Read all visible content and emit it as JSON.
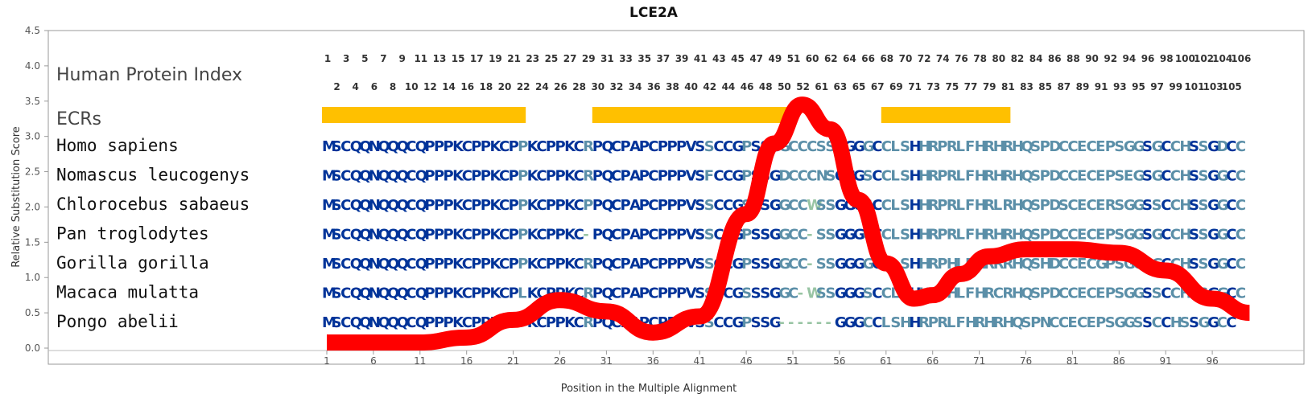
{
  "chart_data": {
    "type": "line",
    "title": "LCE2A",
    "xlabel": "Position in the Multiple Alignment",
    "ylabel": "Relative Substitution Score",
    "ylim": [
      0,
      4.5
    ],
    "y_ticks": [
      "0.0",
      "0.5",
      "1.0",
      "1.5",
      "2.0",
      "2.5",
      "3.0",
      "3.5",
      "4.0",
      "4.5"
    ],
    "x_ticks": [
      "1",
      "6",
      "11",
      "16",
      "21",
      "26",
      "31",
      "36",
      "41",
      "46",
      "51",
      "56",
      "61",
      "66",
      "71",
      "76",
      "81",
      "86",
      "91",
      "96"
    ],
    "series": [
      {
        "color": "#ff0000",
        "points": [
          [
            1,
            0.08
          ],
          [
            6,
            0.08
          ],
          [
            11,
            0.08
          ],
          [
            16,
            0.15
          ],
          [
            21,
            0.4
          ],
          [
            26,
            0.68
          ],
          [
            31,
            0.52
          ],
          [
            36,
            0.22
          ],
          [
            41,
            0.45
          ],
          [
            46,
            1.9
          ],
          [
            49,
            2.9
          ],
          [
            52,
            3.45
          ],
          [
            55,
            3.1
          ],
          [
            58,
            2.1
          ],
          [
            61,
            1.2
          ],
          [
            64,
            0.7
          ],
          [
            66,
            0.75
          ],
          [
            69,
            1.05
          ],
          [
            72,
            1.3
          ],
          [
            76,
            1.4
          ],
          [
            81,
            1.4
          ],
          [
            86,
            1.35
          ],
          [
            91,
            1.1
          ],
          [
            96,
            0.7
          ],
          [
            100,
            0.5
          ]
        ]
      }
    ]
  },
  "index_panel": {
    "label": "Human Protein Index",
    "row1": [
      "1",
      "3",
      "5",
      "7",
      "9",
      "11",
      "13",
      "15",
      "17",
      "19",
      "21",
      "23",
      "25",
      "27",
      "29",
      "31",
      "33",
      "35",
      "37",
      "39",
      "41",
      "43",
      "45",
      "47",
      "49",
      "51",
      "60",
      "62",
      "64",
      "66",
      "68",
      "70",
      "72",
      "74",
      "76",
      "78",
      "80",
      "82",
      "84",
      "86",
      "88",
      "90",
      "92",
      "94",
      "96",
      "98",
      "100",
      "102",
      "104",
      "106"
    ],
    "row2": [
      "2",
      "4",
      "6",
      "8",
      "10",
      "12",
      "14",
      "16",
      "18",
      "20",
      "22",
      "24",
      "26",
      "28",
      "30",
      "32",
      "34",
      "36",
      "38",
      "40",
      "42",
      "44",
      "46",
      "48",
      "50",
      "52",
      "61",
      "63",
      "65",
      "67",
      "69",
      "71",
      "73",
      "75",
      "77",
      "79",
      "81",
      "83",
      "85",
      "87",
      "89",
      "91",
      "93",
      "95",
      "97",
      "99",
      "101",
      "103",
      "105"
    ]
  },
  "ecr_panel": {
    "label": "ECRs",
    "color": "#ffc000",
    "ranges": [
      [
        1,
        22
      ],
      [
        30,
        50
      ],
      [
        61,
        74
      ]
    ]
  },
  "alignment": {
    "colors": {
      "conserved": "#003399",
      "variable": "#5b8fa8",
      "pale": "#98c4a3"
    },
    "species": [
      {
        "name": "Homo sapiens",
        "sequence": "MSCQQNQQQCQPPPKCPPKCPPKCPPKCRPQCPAPCPPPVSSCCGPSSGGCCCSSGGGGCCLSHHRPRLFHRHRHQSPDCCECEPSGGSGCCHSSGDCC"
      },
      {
        "name": "Nomascus leucogenys",
        "sequence": "MSCQQNQQQCQPPPKCPPKCPPKCPPKCRPQCPAPCPPPVSFCCGPSSGDCCCNSGGGSCCLSHHRPRLFHRHRHQSPDCCECEPSEGSGCCHSSGGCC"
      },
      {
        "name": "Chlorocebus sabaeus",
        "sequence": "MSCQQNQQQCQPPPKCPPKCPPKCPPKCPPQCPAPCPPPVSSCCGSSSGGCCWSSGGGSCCLSHHRPRLFHRLRHQSPDSCECERSGGSSCCHSSGGCC"
      },
      {
        "name": "Pan troglodytes",
        "sequence": "MSCQQNQQQCQPPPKCPPKCPPKCPPKC-PQCPAPCPPPVSSCCGPSSGGCC-SSGGGGCCLSHHRPRLFHRHRHQSPDCCECEPSGGSGCCHSSGGCC"
      },
      {
        "name": "Gorilla gorilla",
        "sequence": "MSCQQNQQQCQPPPKCPPKCPPKCPPKCRPQCPAPCPPPVSSCCGPSSGGCC-SSGGGGCCLSHHRPHLFHRRRHQSHDCCECGPSGGSGCCHSSGGCC"
      },
      {
        "name": "Macaca mulatta",
        "sequence": "MSCQQNQQQCQPPPKCPPKCPLKCPPKCRPQCPAPCPPPVSSCCGSSSGGC-WSSGGGSCCLSHHRPHLFHRCRHQSPDCCECEPSGGSSCCHSSGGCC"
      },
      {
        "name": "Pongo abelii",
        "sequence": "MSCQQNQQQCQPPPKCPPKCPPKCPPKCRPQCPAPCPPPVSSCCGPSSG------GGGCCLSHHRPRLFHRHRHQSPNCCECEPSGGSSCCHSSGGCC"
      }
    ]
  }
}
